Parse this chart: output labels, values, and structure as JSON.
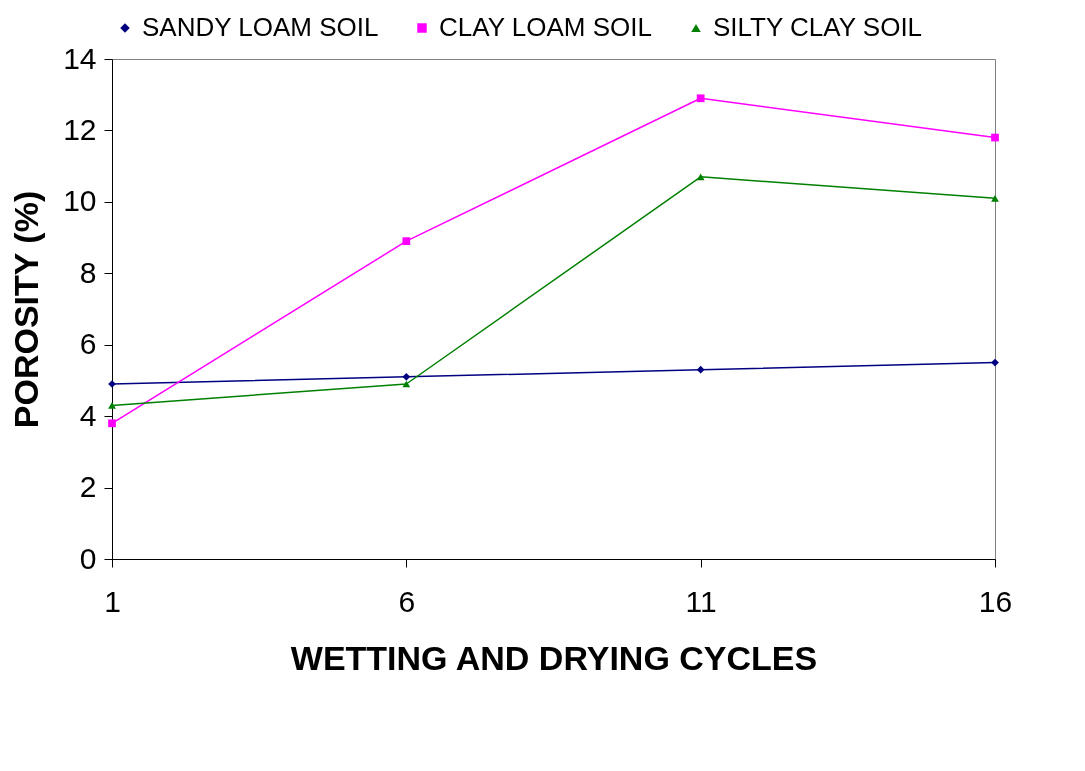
{
  "chart_data": {
    "type": "line",
    "xlabel": "WETTING AND DRYING CYCLES",
    "ylabel": "POROSITY (%)",
    "categories": [
      "1",
      "6",
      "11",
      "16"
    ],
    "ylim": [
      0,
      14
    ],
    "yticks": [
      0,
      2,
      4,
      6,
      8,
      10,
      12,
      14
    ],
    "grid": false,
    "legend": "top",
    "line_style": "solid",
    "series": [
      {
        "name": "SANDY LOAM SOIL",
        "color": "#000080",
        "marker": "diamond",
        "values": [
          4.9,
          5.1,
          5.3,
          5.5
        ]
      },
      {
        "name": "CLAY LOAM SOIL",
        "color": "#ff00ff",
        "marker": "square",
        "values": [
          3.8,
          8.9,
          12.9,
          11.8
        ]
      },
      {
        "name": "SILTY CLAY SOIL",
        "color": "#008000",
        "marker": "triangle",
        "values": [
          4.3,
          4.9,
          10.7,
          10.1
        ]
      }
    ]
  }
}
